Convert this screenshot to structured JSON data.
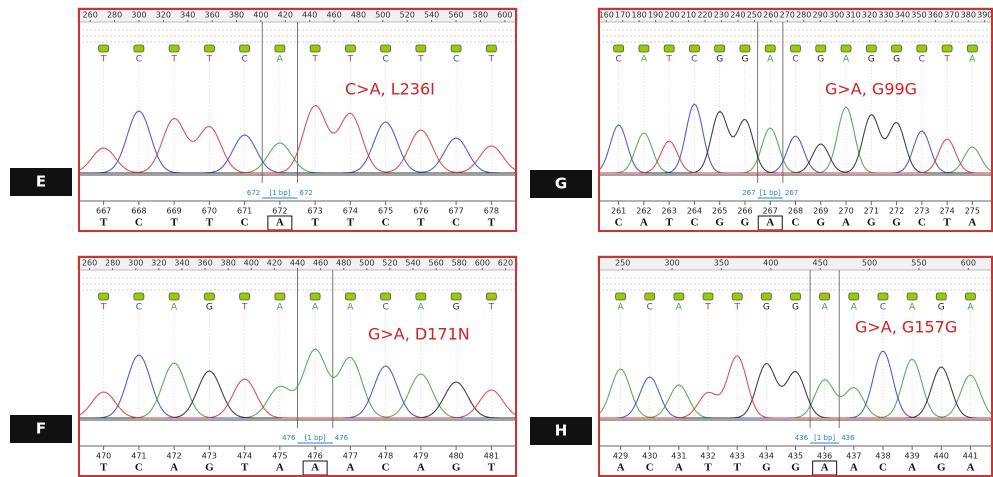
{
  "panels": [
    {
      "label": "E",
      "annotation": "C>A, L236I",
      "ruler": [
        "260",
        "280",
        "300",
        "320",
        "340",
        "360",
        "380",
        "400",
        "420",
        "440",
        "460",
        "480",
        "500",
        "520",
        "540",
        "560",
        "580",
        "600"
      ],
      "calls": [
        "T",
        "C",
        "T",
        "T",
        "C",
        "A",
        "T",
        "T",
        "C",
        "T",
        "C",
        "T"
      ],
      "positions": [
        "667",
        "668",
        "669",
        "670",
        "671",
        "672",
        "673",
        "674",
        "675",
        "676",
        "677",
        "678"
      ],
      "bases": [
        "T",
        "C",
        "T",
        "T",
        "C",
        "A",
        "T",
        "T",
        "C",
        "T",
        "C",
        "T"
      ],
      "marker": [
        "672",
        "[1 bp]",
        "672"
      ]
    },
    {
      "label": "G",
      "annotation": "G>A, G99G",
      "ruler": [
        "160",
        "170",
        "180",
        "190",
        "200",
        "210",
        "220",
        "230",
        "240",
        "250",
        "260",
        "270",
        "280",
        "290",
        "300",
        "310",
        "320",
        "330",
        "340",
        "350",
        "360",
        "370",
        "380",
        "390"
      ],
      "calls": [
        "C",
        "A",
        "T",
        "C",
        "G",
        "G",
        "A",
        "C",
        "G",
        "A",
        "G",
        "G",
        "C",
        "T",
        "A"
      ],
      "positions": [
        "261",
        "262",
        "263",
        "264",
        "265",
        "266",
        "267",
        "268",
        "269",
        "270",
        "271",
        "272",
        "273",
        "274",
        "275"
      ],
      "bases": [
        "C",
        "A",
        "T",
        "C",
        "G",
        "G",
        "A",
        "C",
        "G",
        "A",
        "G",
        "G",
        "C",
        "T",
        "A"
      ],
      "marker": [
        "267",
        "[1 bp]",
        "267"
      ]
    },
    {
      "label": "F",
      "annotation": "G>A, D171N",
      "ruler": [
        "260",
        "280",
        "300",
        "320",
        "340",
        "360",
        "380",
        "400",
        "420",
        "440",
        "460",
        "480",
        "500",
        "520",
        "540",
        "560",
        "580",
        "600",
        "620"
      ],
      "calls": [
        "T",
        "C",
        "A",
        "G",
        "T",
        "A",
        "A",
        "A",
        "C",
        "A",
        "G",
        "T"
      ],
      "positions": [
        "470",
        "471",
        "472",
        "473",
        "474",
        "475",
        "476",
        "477",
        "478",
        "479",
        "480",
        "481"
      ],
      "bases": [
        "T",
        "C",
        "A",
        "G",
        "T",
        "A",
        "A",
        "A",
        "C",
        "A",
        "G",
        "T"
      ],
      "marker": [
        "476",
        "[1 bp]",
        "476"
      ]
    },
    {
      "label": "H",
      "annotation": "G>A, G157G",
      "ruler": [
        "250",
        "300",
        "350",
        "400",
        "450",
        "500",
        "550",
        "600"
      ],
      "calls": [
        "A",
        "C",
        "A",
        "T",
        "T",
        "G",
        "G",
        "A",
        "A",
        "C",
        "A",
        "G",
        "A"
      ],
      "positions": [
        "429",
        "430",
        "431",
        "432",
        "433",
        "434",
        "435",
        "436",
        "437",
        "438",
        "439",
        "440",
        "441"
      ],
      "bases": [
        "A",
        "C",
        "A",
        "T",
        "T",
        "G",
        "G",
        "A",
        "A",
        "C",
        "A",
        "G",
        "A"
      ],
      "marker": [
        "436",
        "[1 bp]",
        "436"
      ]
    }
  ]
}
